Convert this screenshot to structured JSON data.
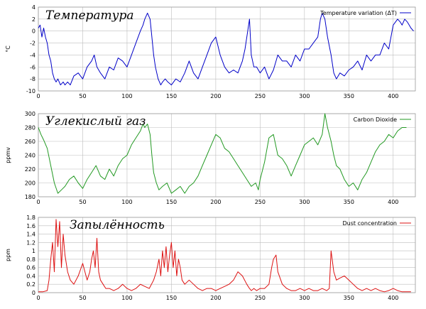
{
  "chart_data": [
    {
      "type": "line",
      "title": "Температура",
      "ylabel": "°C",
      "xlim": [
        0,
        425
      ],
      "ylim": [
        -10,
        4
      ],
      "xticks": [
        0,
        50,
        100,
        150,
        200,
        250,
        300,
        350,
        400
      ],
      "yticks": [
        -10,
        -8,
        -6,
        -4,
        -2,
        0,
        2,
        4
      ],
      "grid": true,
      "legend_position": "top-right",
      "series": [
        {
          "name": "Temperature variation (ΔT)",
          "color": "#0000c8",
          "x": [
            0,
            2,
            4,
            6,
            8,
            10,
            12,
            14,
            16,
            18,
            20,
            22,
            25,
            28,
            30,
            33,
            36,
            40,
            45,
            50,
            55,
            60,
            63,
            66,
            70,
            75,
            80,
            85,
            90,
            95,
            100,
            105,
            110,
            115,
            118,
            120,
            123,
            126,
            128,
            130,
            132,
            135,
            138,
            140,
            143,
            146,
            150,
            155,
            160,
            165,
            170,
            175,
            180,
            185,
            190,
            195,
            200,
            205,
            210,
            215,
            220,
            225,
            230,
            233,
            236,
            238,
            240,
            243,
            246,
            250,
            255,
            260,
            265,
            270,
            275,
            280,
            285,
            290,
            295,
            300,
            305,
            310,
            315,
            318,
            320,
            323,
            326,
            330,
            333,
            336,
            340,
            345,
            350,
            355,
            360,
            365,
            370,
            375,
            380,
            385,
            390,
            395,
            400,
            405,
            408,
            410,
            413,
            416,
            418,
            420,
            423
          ],
          "values": [
            0.5,
            1,
            -1,
            0.5,
            -1,
            -2,
            -4,
            -5,
            -7,
            -8,
            -8.5,
            -8,
            -9,
            -8.5,
            -9,
            -8.5,
            -9,
            -7.5,
            -7,
            -8,
            -6,
            -5,
            -4,
            -6,
            -7,
            -8,
            -6,
            -6.5,
            -4.5,
            -5,
            -6,
            -4,
            -2,
            0,
            1,
            2,
            3,
            2,
            -1,
            -4,
            -6,
            -8,
            -9,
            -8.5,
            -8,
            -8.5,
            -9,
            -8,
            -8.5,
            -7,
            -5,
            -7,
            -8,
            -6,
            -4,
            -2,
            -1,
            -4,
            -6,
            -7,
            -6.5,
            -7,
            -5,
            -3,
            0,
            2,
            -4,
            -6,
            -6,
            -7,
            -6,
            -8,
            -6.5,
            -4,
            -5,
            -5,
            -6,
            -4,
            -5,
            -3,
            -3,
            -2,
            -1,
            2,
            3,
            2,
            -1,
            -4,
            -7,
            -8,
            -7,
            -7.5,
            -6.5,
            -6,
            -5,
            -6.5,
            -4,
            -5,
            -4,
            -4,
            -2,
            -3,
            1,
            2,
            1.5,
            1,
            2,
            1.5,
            1,
            0.5,
            0
          ]
        }
      ]
    },
    {
      "type": "line",
      "title": "Углекислый газ",
      "ylabel": "ppmv",
      "xlim": [
        0,
        425
      ],
      "ylim": [
        180,
        300
      ],
      "xticks": [
        0,
        50,
        100,
        150,
        200,
        250,
        300,
        350,
        400
      ],
      "yticks": [
        180,
        200,
        220,
        240,
        260,
        280,
        300
      ],
      "grid": true,
      "legend_position": "top-right",
      "series": [
        {
          "name": "Carbon Dioxide",
          "color": "#229922",
          "x": [
            0,
            3,
            6,
            10,
            14,
            18,
            22,
            26,
            30,
            35,
            40,
            45,
            50,
            55,
            60,
            65,
            70,
            75,
            80,
            85,
            90,
            95,
            100,
            105,
            110,
            115,
            118,
            120,
            123,
            126,
            128,
            130,
            133,
            136,
            140,
            145,
            150,
            155,
            160,
            165,
            170,
            175,
            180,
            185,
            190,
            195,
            200,
            205,
            210,
            215,
            220,
            225,
            230,
            235,
            240,
            245,
            248,
            250,
            255,
            260,
            265,
            270,
            275,
            280,
            285,
            290,
            295,
            300,
            305,
            310,
            315,
            320,
            323,
            326,
            330,
            333,
            336,
            340,
            345,
            350,
            355,
            360,
            365,
            370,
            375,
            380,
            385,
            390,
            395,
            400,
            405,
            410,
            415
          ],
          "values": [
            280,
            270,
            262,
            250,
            225,
            200,
            185,
            190,
            195,
            205,
            210,
            200,
            192,
            205,
            215,
            225,
            210,
            205,
            220,
            210,
            225,
            235,
            240,
            255,
            265,
            275,
            285,
            280,
            285,
            270,
            240,
            215,
            200,
            190,
            195,
            200,
            185,
            190,
            195,
            185,
            195,
            200,
            210,
            225,
            240,
            255,
            270,
            265,
            250,
            245,
            235,
            225,
            215,
            205,
            195,
            200,
            190,
            205,
            230,
            265,
            270,
            240,
            235,
            225,
            210,
            225,
            240,
            255,
            260,
            265,
            255,
            270,
            300,
            280,
            260,
            240,
            225,
            220,
            205,
            195,
            200,
            190,
            205,
            215,
            230,
            245,
            255,
            260,
            270,
            265,
            275,
            280,
            280
          ]
        }
      ]
    },
    {
      "type": "line",
      "title": "Запылённость",
      "ylabel": "ppm",
      "xlim": [
        0,
        425
      ],
      "ylim": [
        0,
        1.8
      ],
      "xticks": [
        0,
        50,
        100,
        150,
        200,
        250,
        300,
        350,
        400
      ],
      "yticks": [
        0,
        0.2,
        0.4,
        0.6,
        0.8,
        1,
        1.2,
        1.4,
        1.6,
        1.8
      ],
      "ytick_labels": [
        "0",
        "0.2",
        "0.4",
        "0.6",
        "0.8",
        "1",
        "1.2",
        "1.4",
        "1.6",
        "1.8"
      ],
      "grid": true,
      "legend_position": "top-right",
      "series": [
        {
          "name": "Dust concentration",
          "color": "#dd1111",
          "x": [
            0,
            5,
            10,
            12,
            14,
            16,
            18,
            20,
            22,
            24,
            26,
            28,
            30,
            33,
            36,
            40,
            45,
            50,
            55,
            58,
            60,
            62,
            64,
            66,
            68,
            70,
            73,
            76,
            80,
            85,
            90,
            95,
            100,
            105,
            110,
            115,
            120,
            125,
            130,
            133,
            136,
            138,
            140,
            142,
            144,
            146,
            148,
            150,
            152,
            154,
            156,
            158,
            160,
            162,
            165,
            170,
            175,
            180,
            185,
            190,
            195,
            200,
            205,
            210,
            215,
            220,
            225,
            230,
            235,
            238,
            240,
            243,
            246,
            250,
            255,
            260,
            263,
            265,
            268,
            270,
            275,
            280,
            285,
            290,
            295,
            300,
            305,
            310,
            315,
            320,
            325,
            328,
            330,
            333,
            336,
            340,
            345,
            350,
            355,
            360,
            365,
            370,
            375,
            380,
            385,
            390,
            395,
            400,
            405,
            410,
            415,
            420
          ],
          "values": [
            0.02,
            0.02,
            0.05,
            0.3,
            0.8,
            1.2,
            0.5,
            1.75,
            1.1,
            1.7,
            0.6,
            1.4,
            0.9,
            0.5,
            0.3,
            0.2,
            0.4,
            0.7,
            0.3,
            0.5,
            0.8,
            1.0,
            0.6,
            1.3,
            0.5,
            0.3,
            0.2,
            0.1,
            0.1,
            0.05,
            0.1,
            0.2,
            0.1,
            0.05,
            0.1,
            0.2,
            0.15,
            0.1,
            0.3,
            0.5,
            0.8,
            0.4,
            1.0,
            0.6,
            1.1,
            0.5,
            0.9,
            1.2,
            0.6,
            1.0,
            0.4,
            0.8,
            0.6,
            0.3,
            0.2,
            0.3,
            0.2,
            0.1,
            0.05,
            0.1,
            0.1,
            0.05,
            0.1,
            0.15,
            0.2,
            0.3,
            0.5,
            0.4,
            0.2,
            0.1,
            0.05,
            0.1,
            0.05,
            0.1,
            0.1,
            0.2,
            0.6,
            0.8,
            0.9,
            0.5,
            0.2,
            0.1,
            0.05,
            0.05,
            0.1,
            0.05,
            0.1,
            0.05,
            0.05,
            0.1,
            0.05,
            0.1,
            1.0,
            0.5,
            0.3,
            0.35,
            0.4,
            0.3,
            0.2,
            0.1,
            0.05,
            0.1,
            0.05,
            0.1,
            0.05,
            0.02,
            0.05,
            0.1,
            0.05,
            0.02,
            0.02,
            0.02
          ]
        }
      ]
    }
  ]
}
